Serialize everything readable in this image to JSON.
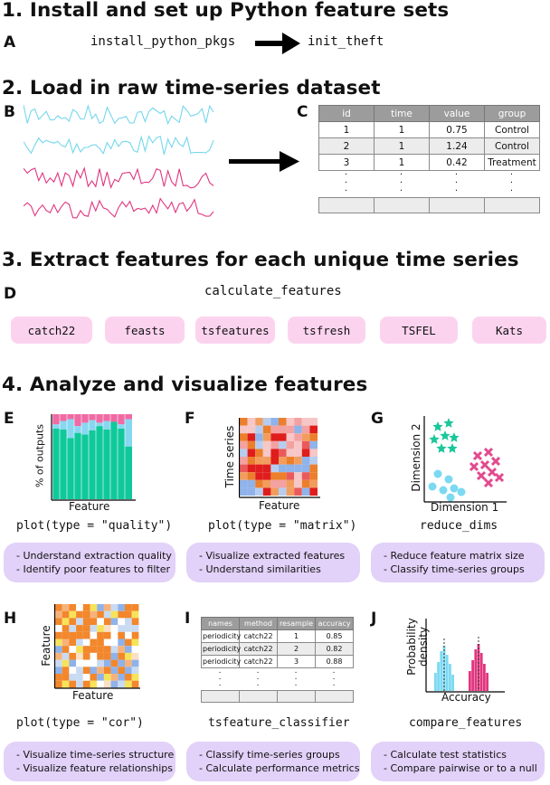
{
  "section1": {
    "title": "1. Install and set up Python feature sets"
  },
  "panelA": {
    "label": "A",
    "from": "install_python_pkgs",
    "to": "init_theft"
  },
  "section2": {
    "title": "2. Load in raw time-series dataset"
  },
  "panelB": {
    "label": "B",
    "colors": [
      "#74d7ec",
      "#74d7ec",
      "#e0357f",
      "#e0357f"
    ]
  },
  "panelC": {
    "label": "C",
    "headers": [
      "id",
      "time",
      "value",
      "group"
    ],
    "rows": [
      [
        "1",
        "1",
        "0.75",
        "Control"
      ],
      [
        "2",
        "1",
        "1.24",
        "Control"
      ],
      [
        "3",
        "1",
        "0.42",
        "Treatment"
      ]
    ],
    "dots": "."
  },
  "section3": {
    "title": "3. Extract features for each unique time series"
  },
  "panelD": {
    "label": "D",
    "function": "calculate_features",
    "feature_sets": [
      "catch22",
      "feasts",
      "tsfeatures",
      "tsfresh",
      "TSFEL",
      "Kats"
    ]
  },
  "section4": {
    "title": "4. Analyze and visualize features"
  },
  "panelE": {
    "label": "E",
    "ylabel": "% of  outputs",
    "xlabel": "Feature",
    "call": "plot(type = \"quality\")",
    "notes": [
      "- Understand extraction quality",
      "- Identify poor features to filter"
    ],
    "colors": {
      "good": "#10c99a",
      "na": "#88d7f1",
      "bad": "#f06aa4"
    }
  },
  "panelF": {
    "label": "F",
    "ylabel": "Time series",
    "xlabel": "Feature",
    "call": "plot(type = \"matrix\")",
    "notes": [
      "- Visualize extracted features",
      "- Understand similarities"
    ]
  },
  "panelG": {
    "label": "G",
    "ylabel": "Dimension 2",
    "xlabel": "Dimension 1",
    "call": "reduce_dims",
    "notes": [
      "- Reduce feature matrix size",
      "- Classify time-series groups"
    ],
    "colors": {
      "stars": "#1ac79a",
      "circles": "#7bd9f2",
      "crosses": "#e24a8e"
    }
  },
  "panelH": {
    "label": "H",
    "ylabel": "Feature",
    "xlabel": "Feature",
    "call": "plot(type = \"cor\")",
    "notes": [
      "- Visualize time-series structure",
      "- Visualize feature relationships"
    ]
  },
  "panelI": {
    "label": "I",
    "headers": [
      "names",
      "method",
      "resample",
      "accuracy"
    ],
    "rows": [
      [
        "periodicity",
        "catch22",
        "1",
        "0.85"
      ],
      [
        "periodicity",
        "catch22",
        "2",
        "0.82"
      ],
      [
        "periodicity",
        "catch22",
        "3",
        "0.88"
      ]
    ],
    "dots": ".",
    "call": "tsfeature_classifier",
    "notes": [
      "- Classify time-series groups",
      "- Calculate performance metrics"
    ]
  },
  "panelJ": {
    "label": "J",
    "ylabel_line1": "Probability",
    "ylabel_line2": "density",
    "xlabel": "Accuracy",
    "call": "compare_features",
    "notes": [
      "- Calculate test statistics",
      "- Compare pairwise or to a null"
    ],
    "colors": {
      "a": "#7bd9f2",
      "b": "#e2357f"
    }
  }
}
